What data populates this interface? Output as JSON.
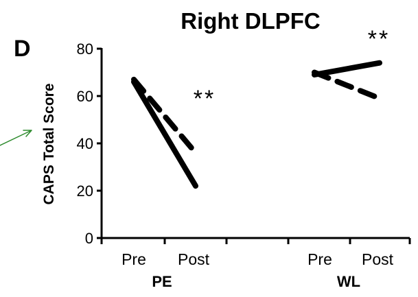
{
  "chart_data": {
    "type": "line",
    "title": "Right DLPFC",
    "panel_label": "D",
    "ylabel": "CAPS Total Score",
    "ylim": [
      0,
      80
    ],
    "yticks": [
      "0",
      "20",
      "40",
      "60",
      "80"
    ],
    "groups": [
      {
        "name": "PE",
        "categories": [
          "Pre",
          "Post"
        ],
        "significance": "**",
        "series": [
          {
            "style": "solid",
            "values": [
              66,
              22
            ]
          },
          {
            "style": "dashed",
            "values": [
              67,
              36
            ]
          }
        ]
      },
      {
        "name": "WL",
        "categories": [
          "Pre",
          "Post"
        ],
        "significance": "**",
        "series": [
          {
            "style": "solid",
            "values": [
              69,
              74
            ]
          },
          {
            "style": "dashed",
            "values": [
              70,
              59
            ]
          }
        ]
      }
    ],
    "grid": false,
    "legend": "none"
  },
  "colors": {
    "series": "#000000",
    "arrow": "#2e8b2e"
  }
}
